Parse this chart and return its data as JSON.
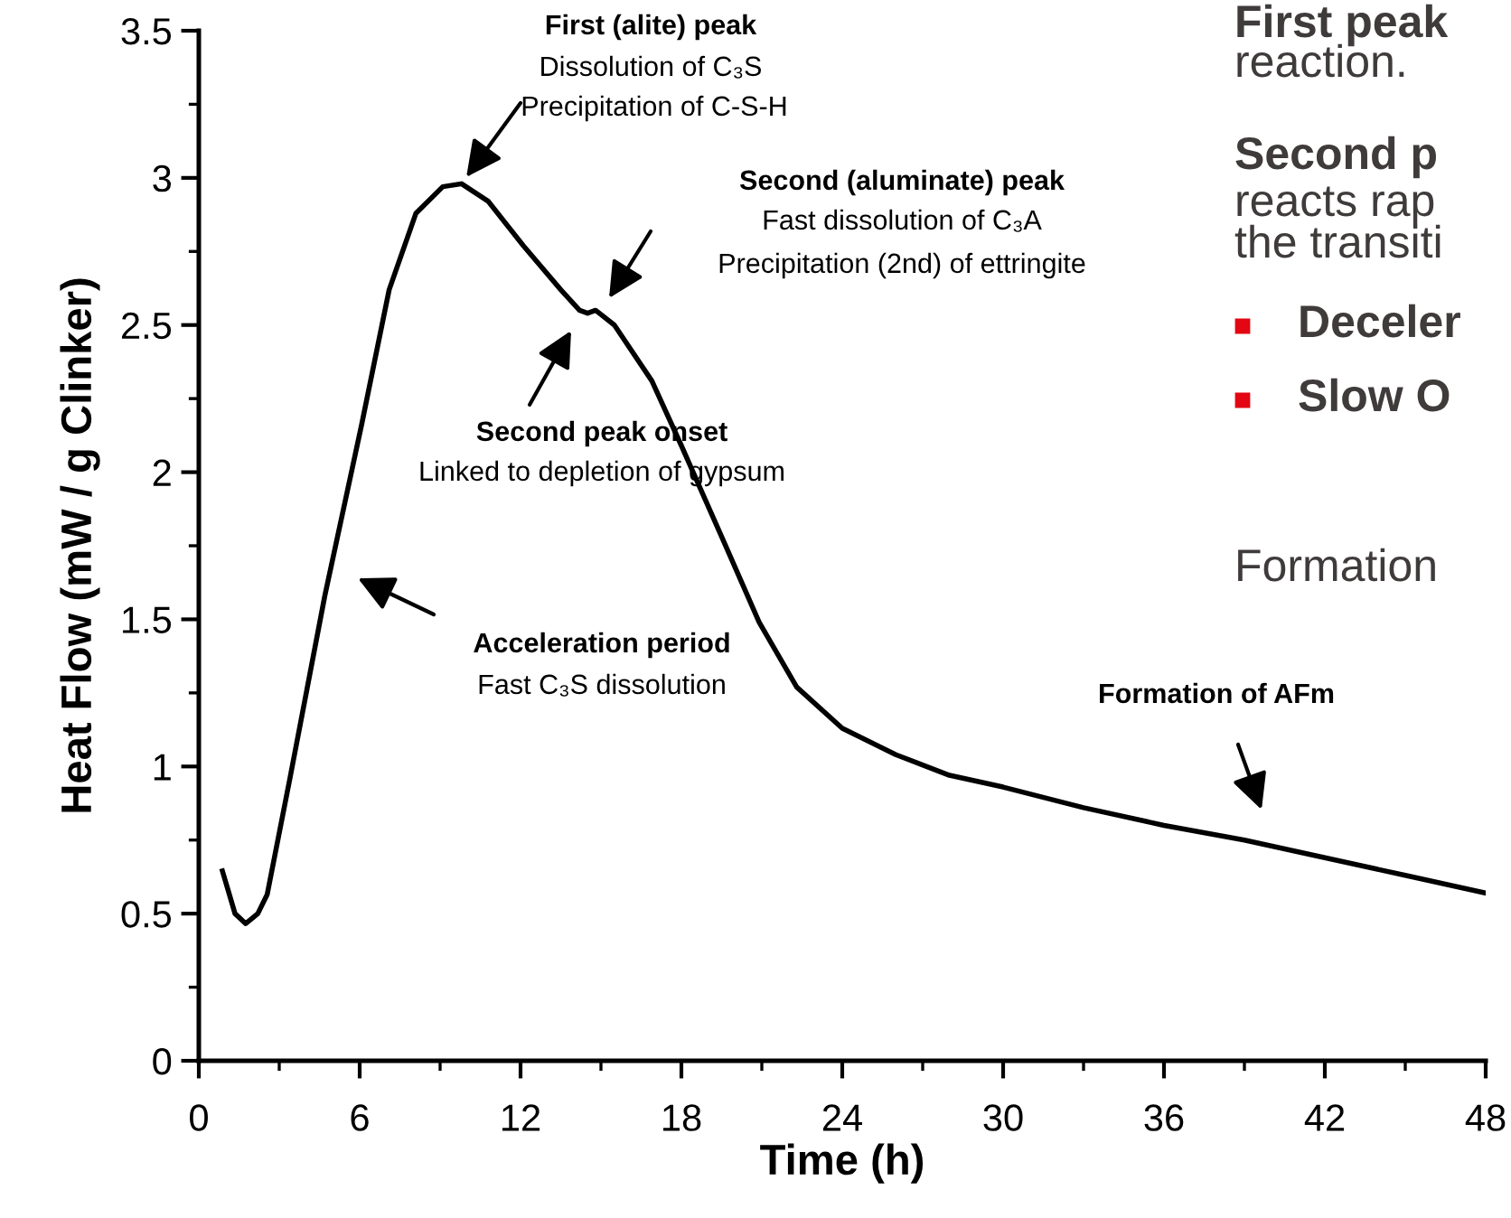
{
  "chart_data": {
    "type": "line",
    "xlabel": "Time (h)",
    "ylabel": "Heat Flow (mW / g Clinker)",
    "x": [
      0.88,
      1.35,
      1.75,
      2.2,
      2.55,
      3.4,
      4.7,
      6.07,
      7.1,
      8.1,
      9.1,
      9.8,
      10.8,
      12.1,
      13.5,
      14.2,
      14.5,
      14.8,
      15.5,
      16.9,
      18.0,
      19.6,
      20.9,
      22.3,
      24.0,
      26.0,
      28.0,
      30.0,
      33.0,
      36.0,
      39.0,
      42.0,
      45.0,
      48.0
    ],
    "series": [
      {
        "color": "#000000",
        "values": [
          0.645,
          0.5,
          0.466,
          0.5,
          0.565,
          0.96,
          1.58,
          2.16,
          2.62,
          2.88,
          2.97,
          2.98,
          2.92,
          2.77,
          2.62,
          2.55,
          2.54,
          2.55,
          2.5,
          2.31,
          2.09,
          1.76,
          1.49,
          1.27,
          1.13,
          1.04,
          0.97,
          0.93,
          0.86,
          0.8,
          0.75,
          0.69,
          0.63,
          0.57
        ]
      }
    ],
    "xlim": [
      0,
      48
    ],
    "ylim": [
      0,
      3.5
    ],
    "xticks": [
      0,
      {
        "value": 3,
        "label": null
      },
      6,
      {
        "value": 9,
        "label": null
      },
      12,
      {
        "value": 15,
        "label": null
      },
      18,
      {
        "value": 21,
        "label": null
      },
      24,
      {
        "value": 27,
        "label": null
      },
      30,
      {
        "value": 33,
        "label": null
      },
      36,
      {
        "value": 39,
        "label": null
      },
      42,
      {
        "value": 45,
        "label": null
      },
      48
    ],
    "yticks": [
      0,
      {
        "value": 0.25,
        "label": null
      },
      0.5,
      {
        "value": 0.75,
        "label": null
      },
      1,
      {
        "value": 1.25,
        "label": null
      },
      1.5,
      {
        "value": 1.75,
        "label": null
      },
      2,
      {
        "value": 2.25,
        "label": null
      },
      2.5,
      {
        "value": 2.75,
        "label": null
      },
      3,
      {
        "value": 3.25,
        "label": null
      },
      3.5
    ],
    "grid": false,
    "legend": false,
    "marker": "none",
    "line_style": "solid",
    "annotations": [
      "First (alite) peak",
      "Dissolution of C₃S",
      "Precipitation of C-S-H",
      "Second (aluminate) peak",
      "Fast dissolution of C₃A",
      "Precipitation (2nd) of ettringite",
      "Second peak onset",
      "Linked to depletion of gypsum",
      "Acceleration period",
      "Fast C₃S dissolution",
      "Formation of AFm",
      "First peak",
      "reaction.",
      "Second p",
      "reacts rap",
      "the transiti",
      "Deceler",
      "Slow O",
      "Formation"
    ]
  }
}
